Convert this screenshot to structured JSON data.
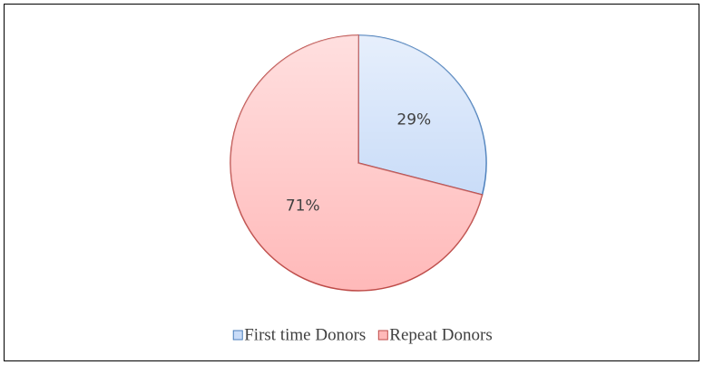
{
  "chart_data": {
    "type": "pie",
    "categories": [
      "First time Donors",
      "Repeat Donors"
    ],
    "values": [
      29,
      71
    ],
    "value_labels": [
      "29%",
      "71%"
    ],
    "colors": [
      "#c9dcf8",
      "#ffb9b9"
    ],
    "edge_colors": [
      "#4a7ebb",
      "#be4b48"
    ],
    "legend": "bottom"
  }
}
